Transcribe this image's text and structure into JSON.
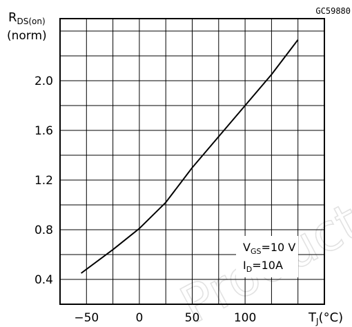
{
  "chart_data": {
    "type": "line",
    "figure_code": "GC59880",
    "ylabel": {
      "symbol": "R",
      "subscript": "DS(on)",
      "unit": "(norm)"
    },
    "xlabel": {
      "symbol": "T",
      "subscript": "J",
      "unit": "(°C)"
    },
    "xlim": [
      -75,
      175
    ],
    "ylim": [
      0.2,
      2.5
    ],
    "x_ticks": [
      -50,
      0,
      50,
      100
    ],
    "x_tick_labels": [
      "−50",
      "0",
      "50",
      "100"
    ],
    "y_ticks": [
      0.4,
      0.8,
      1.2,
      1.6,
      2.0
    ],
    "y_tick_labels": [
      "0.4",
      "0.8",
      "1.2",
      "1.6",
      "2.0"
    ],
    "grid": true,
    "series": [
      {
        "x": [
          -55,
          -25,
          0,
          25,
          50,
          75,
          100,
          125,
          150
        ],
        "y": [
          0.45,
          0.64,
          0.81,
          1.02,
          1.3,
          1.55,
          1.8,
          2.05,
          2.33
        ]
      }
    ],
    "annotations": [
      {
        "symbol": "V",
        "subscript": "GS",
        "text": "=10 V"
      },
      {
        "symbol": "I",
        "subscript": "D",
        "text": "=10A"
      }
    ],
    "watermark": "Product(s)"
  }
}
